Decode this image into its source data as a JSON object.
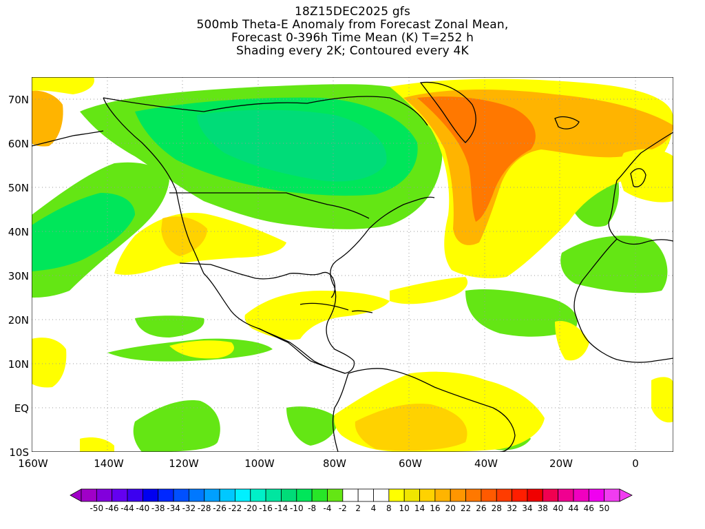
{
  "title": {
    "line1": "18Z15DEC2025 gfs",
    "line2": "500mb Theta-E Anomaly from Forecast Zonal Mean,",
    "line3": "Forecast 0-396h Time Mean (K) T=252 h",
    "line4": "Shading every 2K; Contoured every 4K"
  },
  "map": {
    "lon_range": [
      -160,
      10
    ],
    "lat_range": [
      -10,
      75
    ],
    "lat_labels": [
      "70N",
      "60N",
      "50N",
      "40N",
      "30N",
      "20N",
      "10N",
      "EQ",
      "10S"
    ],
    "lon_labels": [
      "160W",
      "140W",
      "120W",
      "100W",
      "80W",
      "60W",
      "40W",
      "20W",
      "0"
    ],
    "grid": "dotted"
  },
  "colorbar": {
    "labels": [
      "-50",
      "-46",
      "-44",
      "-40",
      "-38",
      "-34",
      "-32",
      "-28",
      "-26",
      "-22",
      "-20",
      "-16",
      "-14",
      "-10",
      "-8",
      "-4",
      "-2",
      "2",
      "4",
      "8",
      "10",
      "14",
      "16",
      "20",
      "22",
      "26",
      "28",
      "32",
      "34",
      "38",
      "40",
      "44",
      "46",
      "50"
    ],
    "colors": [
      "#a000c8",
      "#8200dc",
      "#6400f0",
      "#3c00f0",
      "#0000f0",
      "#0028ff",
      "#0050ff",
      "#0078ff",
      "#00a0ff",
      "#00c8ff",
      "#00f0ff",
      "#00f0c8",
      "#00e6a0",
      "#00dc78",
      "#00e65a",
      "#28e628",
      "#64e614",
      "#ffffff",
      "#ffffff",
      "#ffffff",
      "#ffff00",
      "#f0e600",
      "#ffd200",
      "#ffb400",
      "#ff9600",
      "#ff7800",
      "#ff5a00",
      "#ff3c00",
      "#ff1e00",
      "#f00000",
      "#f00050",
      "#f00090",
      "#f000c0",
      "#f000f0",
      "#f03cf0"
    ]
  },
  "colors": {
    "land_outline": "#000000",
    "background": "#ffffff",
    "grid": "#999999"
  }
}
